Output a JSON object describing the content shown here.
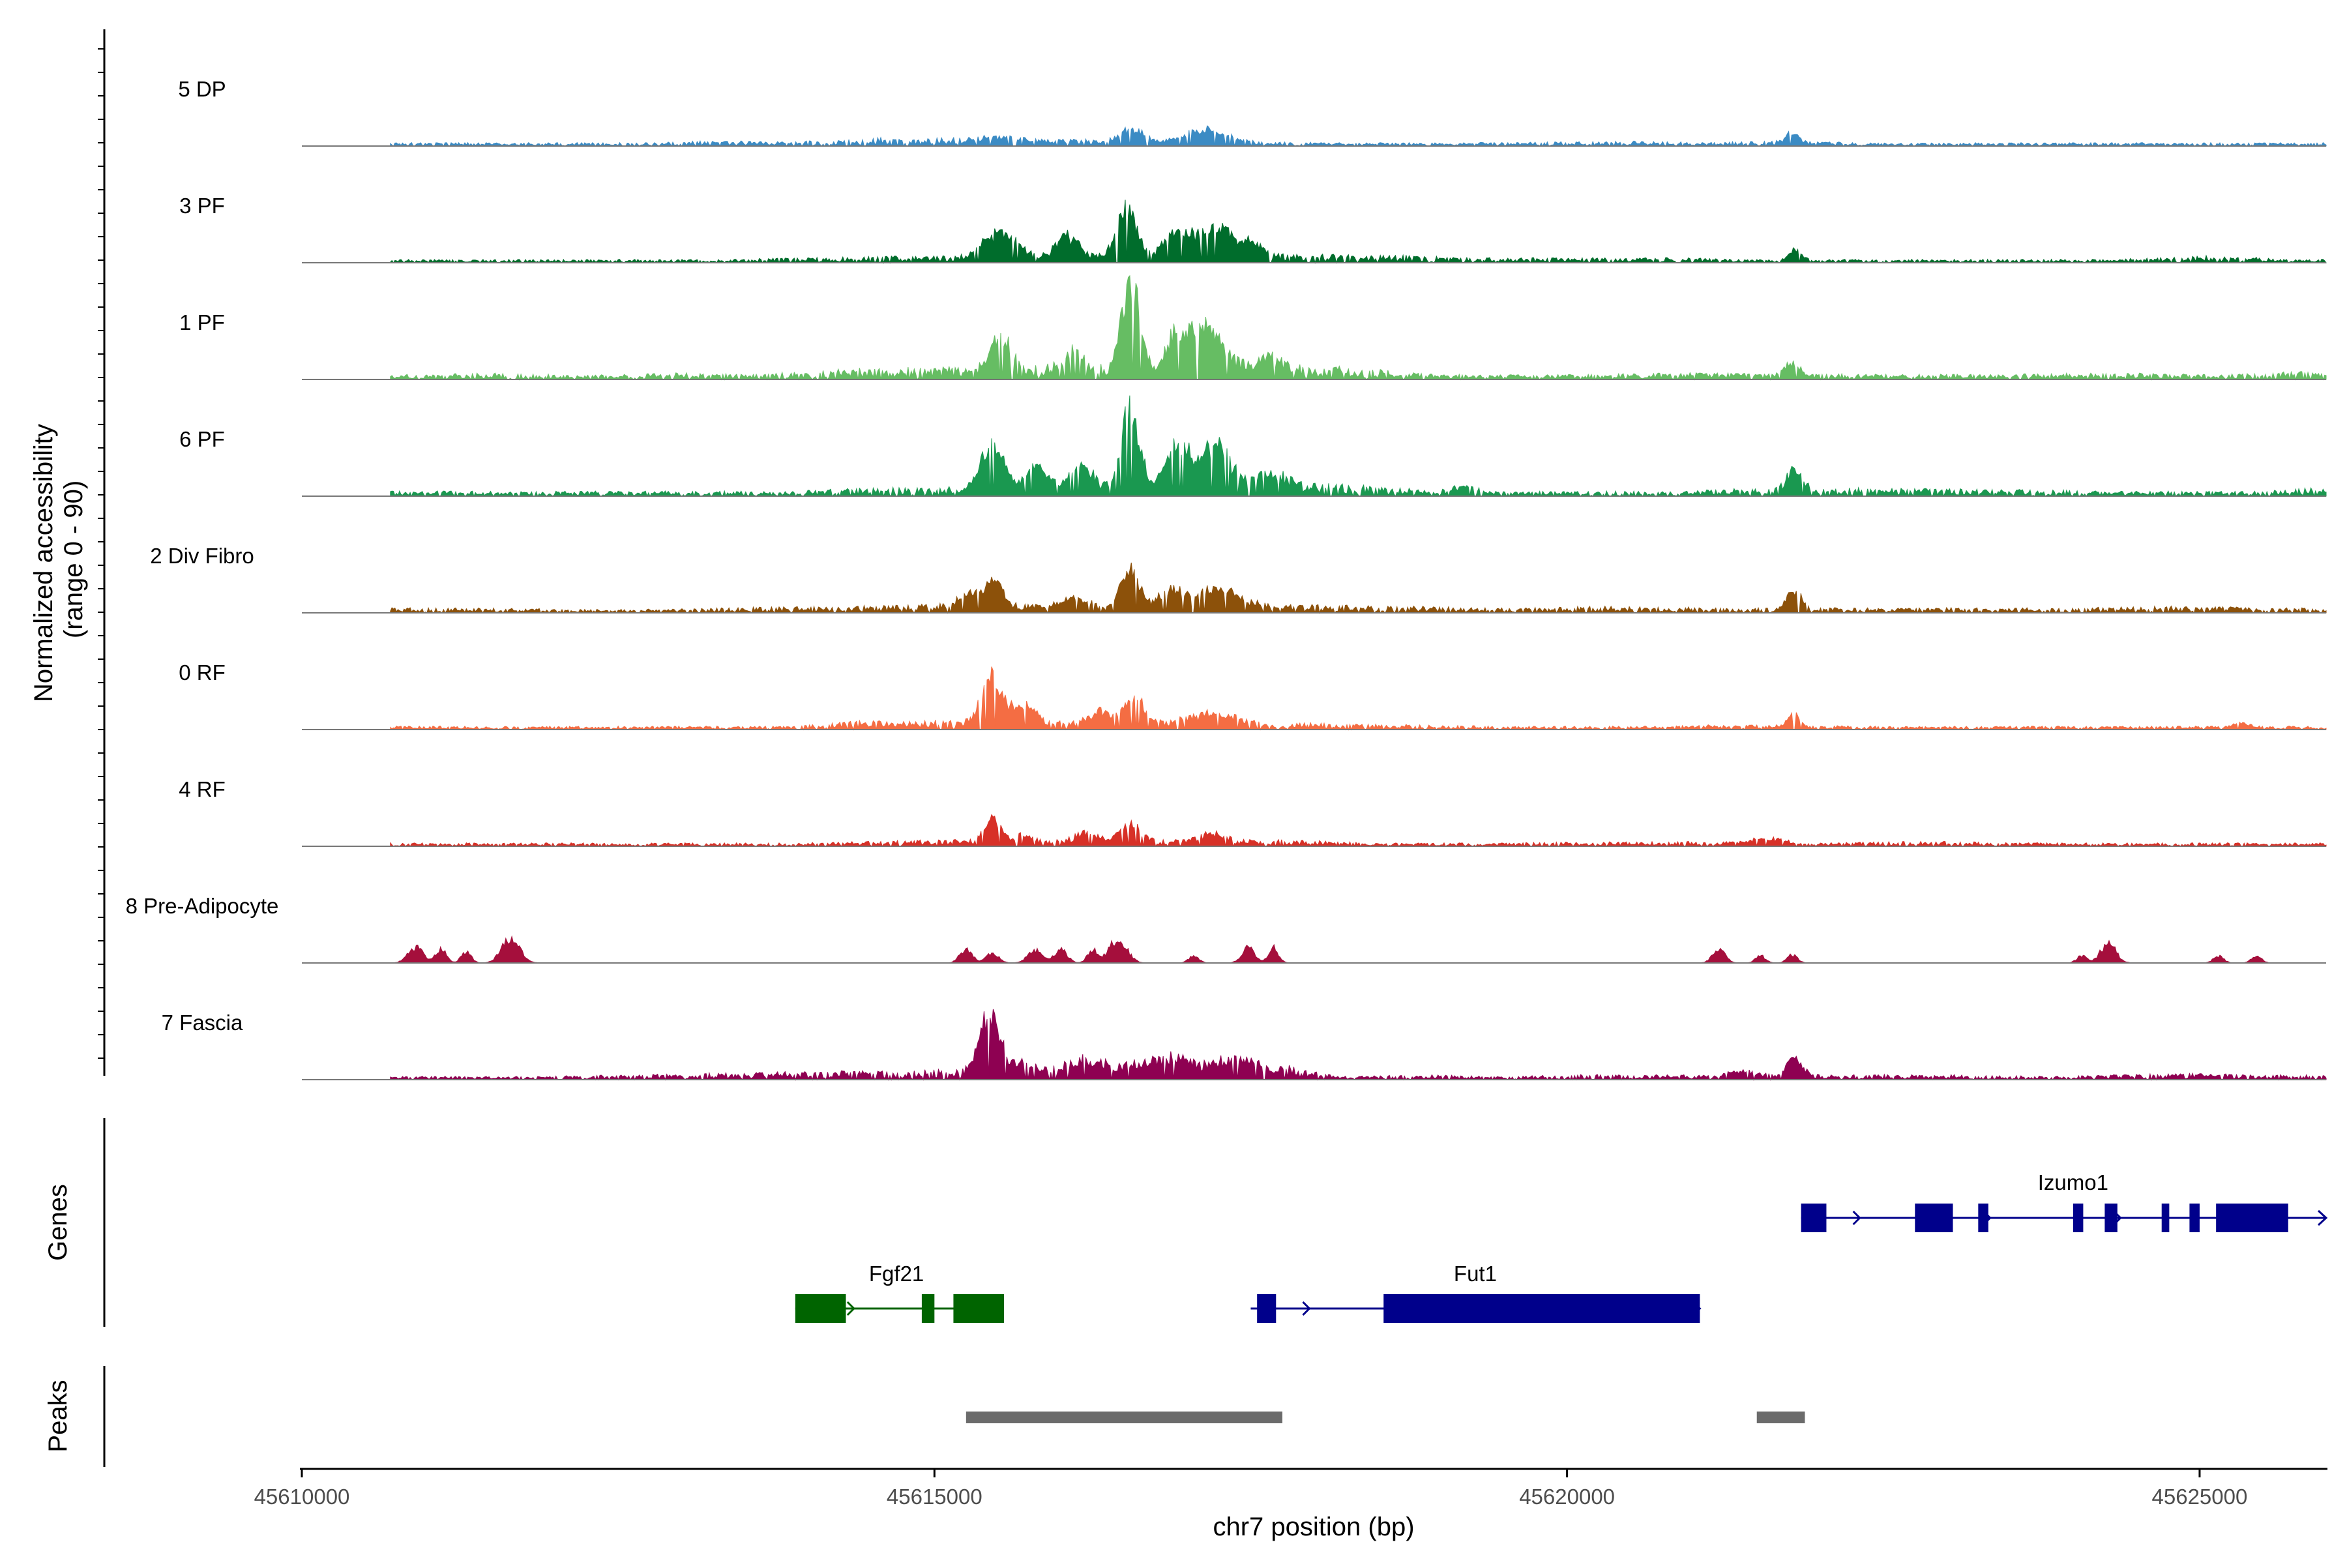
{
  "chart_data": {
    "type": "area",
    "title": "",
    "ylabel_line1": "Normalized accessibility",
    "ylabel_line2": "(range 0 - 90)",
    "xlabel": "chr7 position (bp)",
    "xlim": [
      45610000,
      45626000
    ],
    "ylim": [
      0,
      90
    ],
    "x_ticks": [
      45610000,
      45615000,
      45620000,
      45625000
    ],
    "x_tick_labels": [
      "45610000",
      "45615000",
      "45620000",
      "45625000"
    ],
    "tracks": [
      {
        "name": "5 DP",
        "color": "#3B8BC4",
        "background": [
          [
            45611100,
            2
          ],
          [
            45611300,
            2
          ],
          [
            45612800,
            2
          ],
          [
            45613000,
            3
          ],
          [
            45614200,
            3
          ],
          [
            45614500,
            5
          ],
          [
            45616400,
            4
          ],
          [
            45618200,
            2
          ],
          [
            45619200,
            2
          ],
          [
            45620600,
            3
          ],
          [
            45621100,
            2
          ],
          [
            45621500,
            3
          ],
          [
            45622500,
            2
          ],
          [
            45623800,
            2
          ],
          [
            45625000,
            2
          ],
          [
            45625800,
            2
          ]
        ],
        "peaks": [
          [
            45616560,
            12,
            90
          ],
          [
            45617150,
            11,
            170
          ],
          [
            45615500,
            3,
            200
          ],
          [
            45621780,
            8,
            60
          ]
        ]
      },
      {
        "name": "3 PF",
        "color": "#006D2C",
        "background": [
          [
            45611100,
            2
          ],
          [
            45611900,
            2
          ],
          [
            45612800,
            2
          ],
          [
            45613300,
            2
          ],
          [
            45614000,
            3
          ],
          [
            45614800,
            4
          ],
          [
            45617800,
            5
          ],
          [
            45618500,
            5
          ],
          [
            45619300,
            3
          ],
          [
            45620000,
            3
          ],
          [
            45620900,
            3
          ],
          [
            45621300,
            2
          ],
          [
            45622500,
            2
          ],
          [
            45623600,
            2
          ],
          [
            45624300,
            2
          ],
          [
            45625100,
            5
          ],
          [
            45625700,
            2
          ]
        ],
        "peaks": [
          [
            45615520,
            22,
            130
          ],
          [
            45616520,
            42,
            80
          ],
          [
            45616930,
            26,
            100
          ],
          [
            45617230,
            28,
            110
          ],
          [
            45616050,
            18,
            90
          ],
          [
            45617500,
            12,
            100
          ],
          [
            45621800,
            9,
            50
          ]
        ]
      },
      {
        "name": "1 PF",
        "color": "#66BD63",
        "background": [
          [
            45611000,
            3
          ],
          [
            45611400,
            4
          ],
          [
            45612000,
            3
          ],
          [
            45612500,
            3
          ],
          [
            45613000,
            4
          ],
          [
            45613500,
            3
          ],
          [
            45614500,
            7
          ],
          [
            45617800,
            10
          ],
          [
            45619000,
            3
          ],
          [
            45620000,
            3
          ],
          [
            45621000,
            4
          ],
          [
            45622500,
            3
          ],
          [
            45623400,
            3
          ],
          [
            45624200,
            4
          ],
          [
            45625200,
            3
          ],
          [
            45625800,
            5
          ]
        ],
        "peaks": [
          [
            45615520,
            30,
            80
          ],
          [
            45616550,
            75,
            70
          ],
          [
            45616930,
            30,
            90
          ],
          [
            45617170,
            34,
            120
          ],
          [
            45616100,
            15,
            90
          ],
          [
            45617650,
            10,
            120
          ],
          [
            45621780,
            11,
            60
          ]
        ]
      },
      {
        "name": "6 PF",
        "color": "#1A9850",
        "background": [
          [
            45610800,
            3
          ],
          [
            45611300,
            3
          ],
          [
            45612400,
            3
          ],
          [
            45613000,
            3
          ],
          [
            45613800,
            3
          ],
          [
            45614500,
            5
          ],
          [
            45618000,
            8
          ],
          [
            45619200,
            3
          ],
          [
            45620000,
            3
          ],
          [
            45620900,
            3
          ],
          [
            45621500,
            5
          ],
          [
            45622200,
            5
          ],
          [
            45623500,
            4
          ],
          [
            45624500,
            3
          ],
          [
            45625500,
            3
          ],
          [
            45625800,
            5
          ]
        ],
        "peaks": [
          [
            45615460,
            38,
            90
          ],
          [
            45615800,
            20,
            80
          ],
          [
            45616550,
            70,
            70
          ],
          [
            45616930,
            35,
            100
          ],
          [
            45617230,
            36,
            110
          ],
          [
            45616150,
            22,
            90
          ],
          [
            45617650,
            12,
            120
          ],
          [
            45621800,
            18,
            60
          ],
          [
            45619200,
            6,
            90
          ]
        ]
      },
      {
        "name": "2 Div Fibro",
        "color": "#8C510A",
        "background": [
          [
            45610900,
            3
          ],
          [
            45611300,
            3
          ],
          [
            45612600,
            2
          ],
          [
            45613300,
            3
          ],
          [
            45614200,
            4
          ],
          [
            45614700,
            5
          ],
          [
            45618000,
            5
          ],
          [
            45619500,
            3
          ],
          [
            45620300,
            4
          ],
          [
            45621300,
            3
          ],
          [
            45622500,
            3
          ],
          [
            45623800,
            3
          ],
          [
            45624800,
            4
          ],
          [
            45625600,
            3
          ]
        ],
        "peaks": [
          [
            45615460,
            22,
            80
          ],
          [
            45616550,
            32,
            70
          ],
          [
            45616870,
            14,
            90
          ],
          [
            45617250,
            15,
            180
          ],
          [
            45616100,
            10,
            100
          ],
          [
            45615250,
            10,
            90
          ],
          [
            45621790,
            18,
            55
          ]
        ]
      },
      {
        "name": "0 RF",
        "color": "#F46D43",
        "background": [
          [
            45611000,
            2
          ],
          [
            45611500,
            2
          ],
          [
            45613000,
            2
          ],
          [
            45613800,
            2
          ],
          [
            45614500,
            6
          ],
          [
            45618000,
            4
          ],
          [
            45619500,
            2
          ],
          [
            45620800,
            2
          ],
          [
            45621200,
            3
          ],
          [
            45622500,
            2
          ],
          [
            45623600,
            2
          ],
          [
            45624800,
            2
          ],
          [
            45625500,
            2
          ]
        ],
        "peaks": [
          [
            45615450,
            40,
            80
          ],
          [
            45615700,
            18,
            90
          ],
          [
            45616570,
            25,
            80
          ],
          [
            45616300,
            10,
            90
          ],
          [
            45617200,
            10,
            180
          ],
          [
            45621790,
            11,
            50
          ],
          [
            45625330,
            4,
            60
          ]
        ]
      },
      {
        "name": "4 RF",
        "color": "#D73027",
        "background": [
          [
            45611000,
            2
          ],
          [
            45612300,
            2
          ],
          [
            45612800,
            2
          ],
          [
            45613800,
            2
          ],
          [
            45614500,
            3
          ],
          [
            45615100,
            4
          ],
          [
            45617800,
            4
          ],
          [
            45618500,
            2
          ],
          [
            45619200,
            2
          ],
          [
            45620800,
            3
          ],
          [
            45622000,
            2
          ],
          [
            45622800,
            3
          ],
          [
            45623800,
            2
          ],
          [
            45624800,
            2
          ],
          [
            45625500,
            2
          ]
        ],
        "peaks": [
          [
            45615460,
            22,
            60
          ],
          [
            45615700,
            8,
            60
          ],
          [
            45616550,
            14,
            80
          ],
          [
            45616200,
            7,
            100
          ],
          [
            45617200,
            7,
            100
          ],
          [
            45621600,
            4,
            150
          ]
        ]
      },
      {
        "name": "8 Pre-Adipocyte",
        "color": "#A50F3C",
        "background": [],
        "peaks": [
          [
            45610900,
            14,
            60
          ],
          [
            45611100,
            12,
            40
          ],
          [
            45611300,
            9,
            40
          ],
          [
            45611650,
            21,
            70
          ],
          [
            45615250,
            11,
            50
          ],
          [
            45615460,
            8,
            50
          ],
          [
            45615800,
            11,
            60
          ],
          [
            45616000,
            11,
            50
          ],
          [
            45616250,
            11,
            40
          ],
          [
            45616450,
            20,
            70
          ],
          [
            45617050,
            6,
            40
          ],
          [
            45617480,
            13,
            50
          ],
          [
            45617680,
            13,
            40
          ],
          [
            45621200,
            11,
            50
          ],
          [
            45621530,
            6,
            40
          ],
          [
            45621780,
            7,
            40
          ],
          [
            45624070,
            6,
            40
          ],
          [
            45624280,
            17,
            60
          ],
          [
            45625150,
            6,
            40
          ],
          [
            45625450,
            6,
            40
          ]
        ]
      },
      {
        "name": "7 Fascia",
        "color": "#8E0152",
        "background": [
          [
            45610900,
            2
          ],
          [
            45611300,
            2
          ],
          [
            45611800,
            2
          ],
          [
            45612700,
            3
          ],
          [
            45613300,
            4
          ],
          [
            45614000,
            5
          ],
          [
            45615000,
            6
          ],
          [
            45617800,
            8
          ],
          [
            45618200,
            2
          ],
          [
            45618900,
            3
          ],
          [
            45619500,
            2
          ],
          [
            45620100,
            3
          ],
          [
            45620900,
            3
          ],
          [
            45621400,
            3
          ],
          [
            45622300,
            3
          ],
          [
            45623000,
            3
          ],
          [
            45623800,
            2
          ],
          [
            45624300,
            3
          ],
          [
            45624800,
            4
          ],
          [
            45625500,
            3
          ]
        ],
        "peaks": [
          [
            45615440,
            48,
            80
          ],
          [
            45615700,
            10,
            90
          ],
          [
            45616200,
            10,
            150
          ],
          [
            45616800,
            12,
            200
          ],
          [
            45617400,
            10,
            180
          ],
          [
            45621800,
            17,
            60
          ],
          [
            45621400,
            5,
            100
          ]
        ]
      }
    ],
    "genes_label": "Genes",
    "genes": [
      {
        "name": "Izumo1",
        "color": "#00008B",
        "strand": "+",
        "row": 1,
        "start": 45621850,
        "end": 45626000,
        "exons": [
          [
            45621850,
            45622050
          ],
          [
            45622750,
            45623050
          ],
          [
            45623250,
            45623330
          ],
          [
            45624000,
            45624080
          ],
          [
            45624250,
            45624350
          ],
          [
            45624700,
            45624760
          ],
          [
            45624920,
            45625000
          ],
          [
            45625130,
            45625700
          ]
        ]
      },
      {
        "name": "Fgf21",
        "color": "#006400",
        "strand": "+",
        "row": 2,
        "start": 45613900,
        "end": 45615500,
        "exons": [
          [
            45613900,
            45614300
          ],
          [
            45614900,
            45615000
          ],
          [
            45615150,
            45615550
          ]
        ]
      },
      {
        "name": "Fut1",
        "color": "#00008B",
        "strand": "+",
        "row": 2,
        "start": 45617500,
        "end": 45621050,
        "exons": [
          [
            45617550,
            45617700
          ],
          [
            45618550,
            45621050
          ]
        ]
      }
    ],
    "peaks_label": "Peaks",
    "peak_regions": [
      [
        45615250,
        45617750
      ],
      [
        45621500,
        45621880
      ]
    ],
    "peak_color": "#6B6B6B"
  }
}
